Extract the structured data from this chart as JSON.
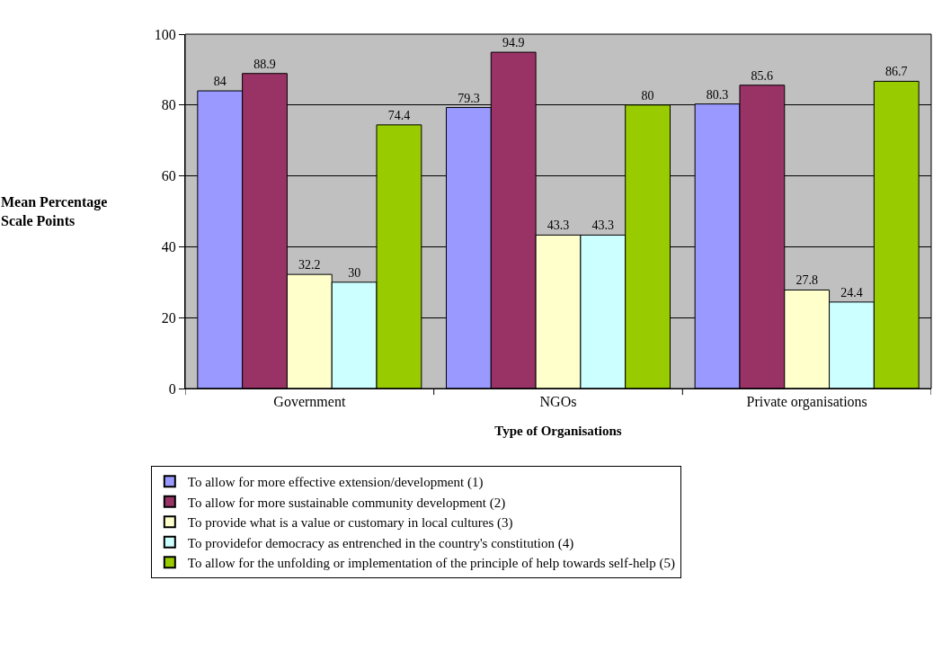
{
  "chart_data": {
    "type": "bar",
    "xlabel": "Type of Organisations",
    "ylabel": "Mean Percentage Scale Points",
    "categories": [
      "Government",
      "NGOs",
      "Private organisations"
    ],
    "series": [
      {
        "name": "To allow for more effective extension/development (1)",
        "color": "#9999ff",
        "values": [
          84,
          79.3,
          80.3
        ]
      },
      {
        "name": "To allow for more sustainable community development (2)",
        "color": "#993366",
        "values": [
          88.9,
          94.9,
          85.6
        ]
      },
      {
        "name": "To provide what is a value or customary in local cultures (3)",
        "color": "#ffffcc",
        "values": [
          32.2,
          43.3,
          27.8
        ]
      },
      {
        "name": "To providefor democracy as entrenched in the country's constitution (4)",
        "color": "#ccffff",
        "values": [
          30,
          43.3,
          24.4
        ]
      },
      {
        "name": "To allow for the unfolding or implementation of the principle of help towards self-help (5)",
        "color": "#99cc00",
        "values": [
          74.4,
          80,
          86.7
        ]
      }
    ],
    "ylim": [
      0,
      100
    ],
    "yticks": [
      0,
      20,
      40,
      60,
      80,
      100
    ],
    "grid": "y",
    "legend": "bottom",
    "data_labels": true
  }
}
